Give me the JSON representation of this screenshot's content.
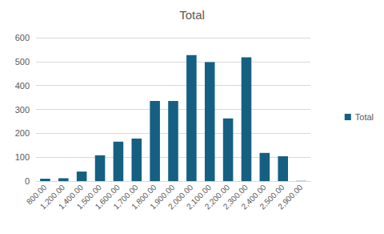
{
  "chart_data": {
    "type": "bar",
    "title": "Total",
    "categories": [
      "800.00",
      "1,200.00",
      "1,400.00",
      "1,500.00",
      "1,600.00",
      "1,700.00",
      "1,800.00",
      "1,900.00",
      "2,000.00",
      "2,100.00",
      "2,200.00",
      "2,300.00",
      "2,400.00",
      "2,500.00",
      "2,900.00"
    ],
    "series": [
      {
        "name": "Total",
        "color": "#156082",
        "values": [
          10,
          12,
          40,
          108,
          165,
          178,
          335,
          335,
          527,
          498,
          262,
          518,
          118,
          104,
          1
        ]
      }
    ],
    "ylim": [
      0,
      600
    ],
    "yticks": [
      0,
      100,
      200,
      300,
      400,
      500,
      600
    ],
    "grid": true,
    "legend": "right"
  }
}
